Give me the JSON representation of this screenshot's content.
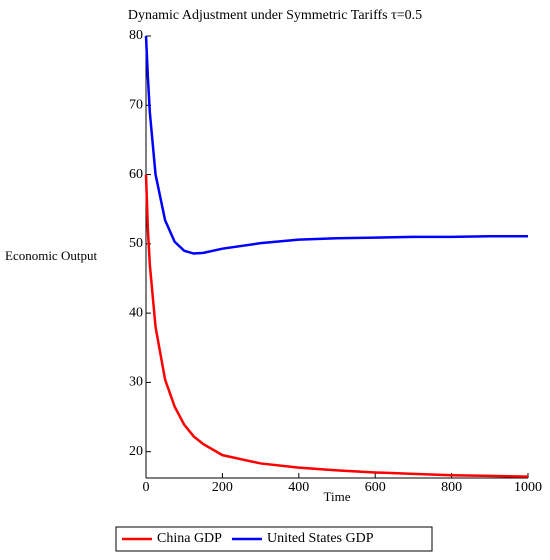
{
  "chart_data": {
    "type": "line",
    "title": "Dynamic Adjustment under Symmetric Tariffs τ=0.5",
    "x_label": "Time",
    "y_label": "Economic Output",
    "x": [
      0,
      5,
      10,
      25,
      50,
      75,
      100,
      125,
      150,
      200,
      300,
      400,
      500,
      600,
      700,
      800,
      900,
      1000
    ],
    "series": [
      {
        "name": "China GDP",
        "color": "#ff0000",
        "values": [
          60,
          52,
          47,
          38,
          30.4,
          26.5,
          23.9,
          22.2,
          21.1,
          19.5,
          18.3,
          17.7,
          17.3,
          17.0,
          16.8,
          16.6,
          16.5,
          16.4
        ]
      },
      {
        "name": "United States GDP",
        "color": "#0000ff",
        "values": [
          80,
          74,
          69,
          60,
          53.4,
          50.3,
          49,
          48.6,
          48.7,
          49.3,
          50.1,
          50.6,
          50.8,
          50.9,
          51,
          51,
          51.1,
          51.1
        ]
      }
    ],
    "xlim": [
      0,
      1000
    ],
    "xticks": [
      0,
      200,
      400,
      600,
      800,
      1000
    ],
    "ylim": [
      16.2,
      80
    ],
    "yticks": [
      20,
      30,
      40,
      50,
      60,
      70,
      80
    ],
    "legend": "bottom"
  }
}
